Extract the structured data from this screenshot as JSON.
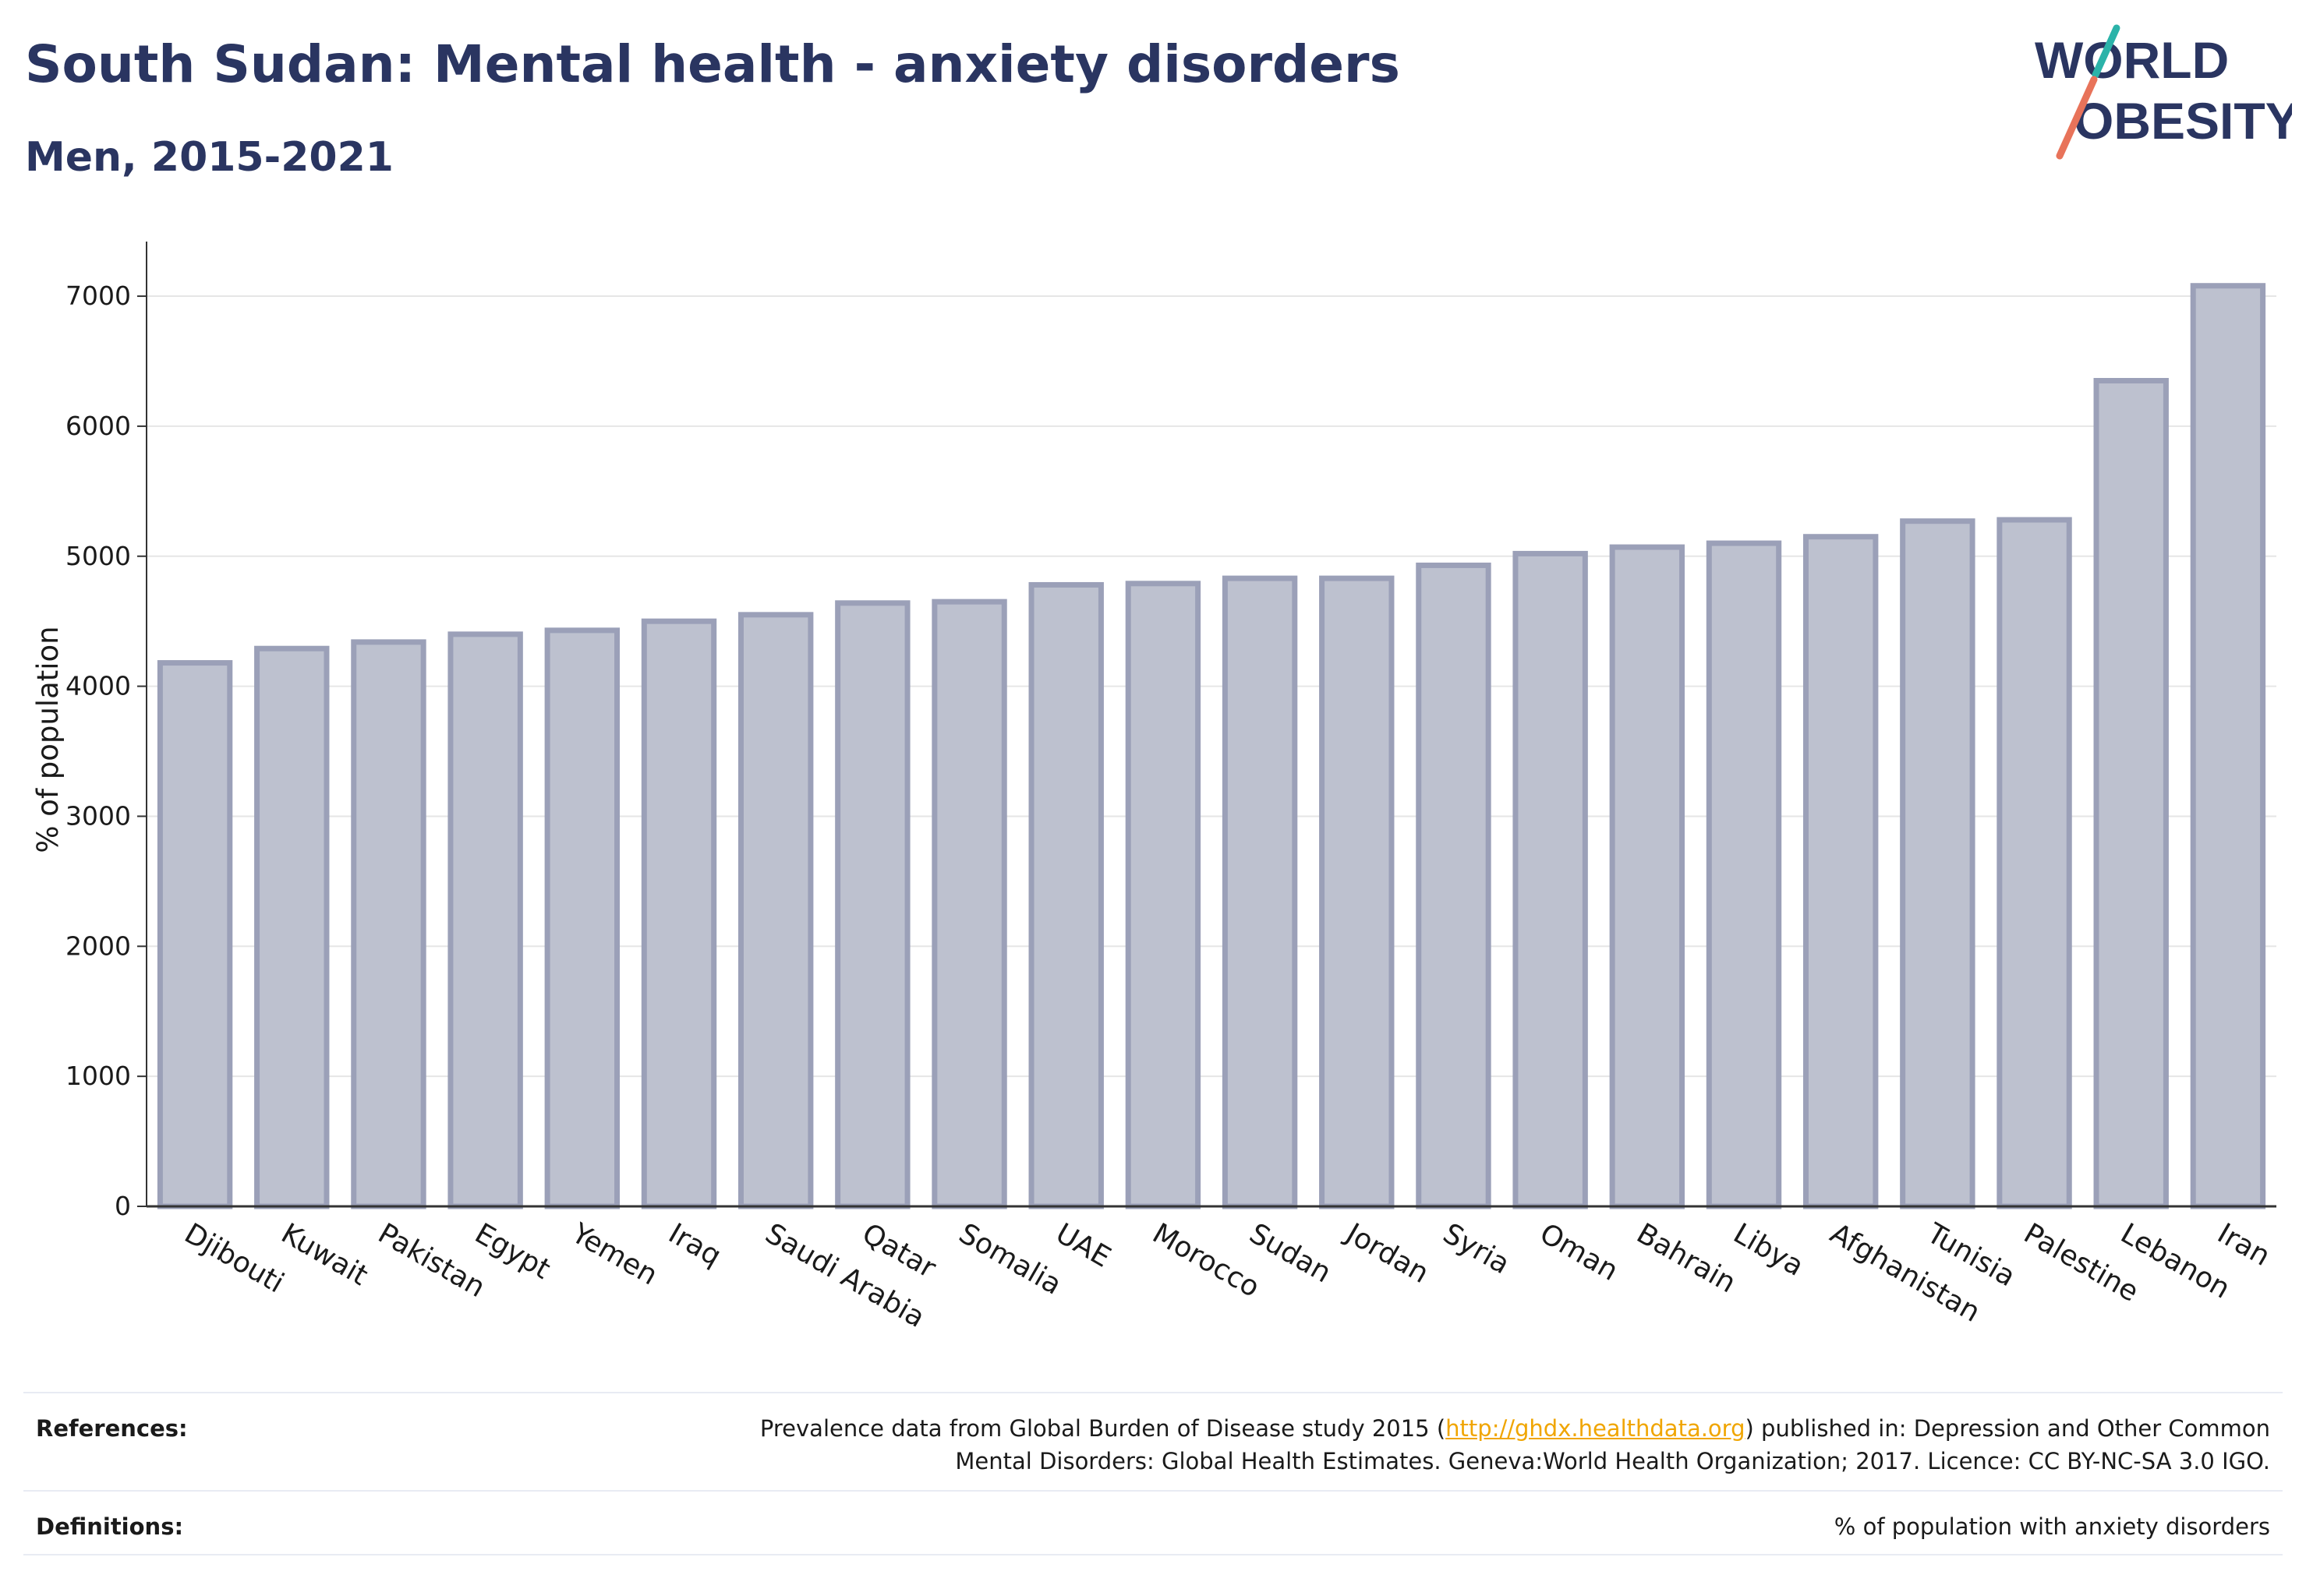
{
  "header": {
    "title": "South Sudan: Mental health - anxiety disorders",
    "subtitle": "Men, 2015-2021"
  },
  "logo": {
    "line1": "WORLD",
    "line2": "OBESITY",
    "slash_colors": [
      "#2bb3a9",
      "#e8735a"
    ]
  },
  "colors": {
    "bar_fill": "#bdc1cf",
    "bar_stroke": "#9ba0b8",
    "axis": "#333333",
    "grid": "#e6e6e6",
    "title": "#2a3561",
    "link": "#f0a500"
  },
  "chart_data": {
    "type": "bar",
    "title": "",
    "xlabel": "",
    "ylabel": "% of population",
    "ylim": [
      0,
      7300
    ],
    "yticks": [
      0,
      1000,
      2000,
      3000,
      4000,
      5000,
      6000,
      7000
    ],
    "grid": true,
    "categories": [
      "Djibouti",
      "Kuwait",
      "Pakistan",
      "Egypt",
      "Yemen",
      "Iraq",
      "Saudi Arabia",
      "Qatar",
      "Somalia",
      "UAE",
      "Morocco",
      "Sudan",
      "Jordan",
      "Syria",
      "Oman",
      "Bahrain",
      "Libya",
      "Afghanistan",
      "Tunisia",
      "Palestine",
      "Lebanon",
      "Iran"
    ],
    "values": [
      4180,
      4290,
      4340,
      4400,
      4430,
      4500,
      4550,
      4640,
      4650,
      4780,
      4790,
      4830,
      4830,
      4930,
      5020,
      5070,
      5100,
      5150,
      5270,
      5280,
      6350,
      7080
    ]
  },
  "footer": {
    "references_label": "References:",
    "references_text_before": "Prevalence data from Global Burden of Disease study 2015 (",
    "references_link": "http://ghdx.healthdata.org",
    "references_text_after": ") published in: Depression and Other Common",
    "references_line2": "Mental Disorders: Global Health Estimates. Geneva:World Health Organization; 2017. Licence: CC BY-NC-SA 3.0 IGO.",
    "definitions_label": "Definitions:",
    "definitions_text": "% of population with anxiety disorders"
  }
}
